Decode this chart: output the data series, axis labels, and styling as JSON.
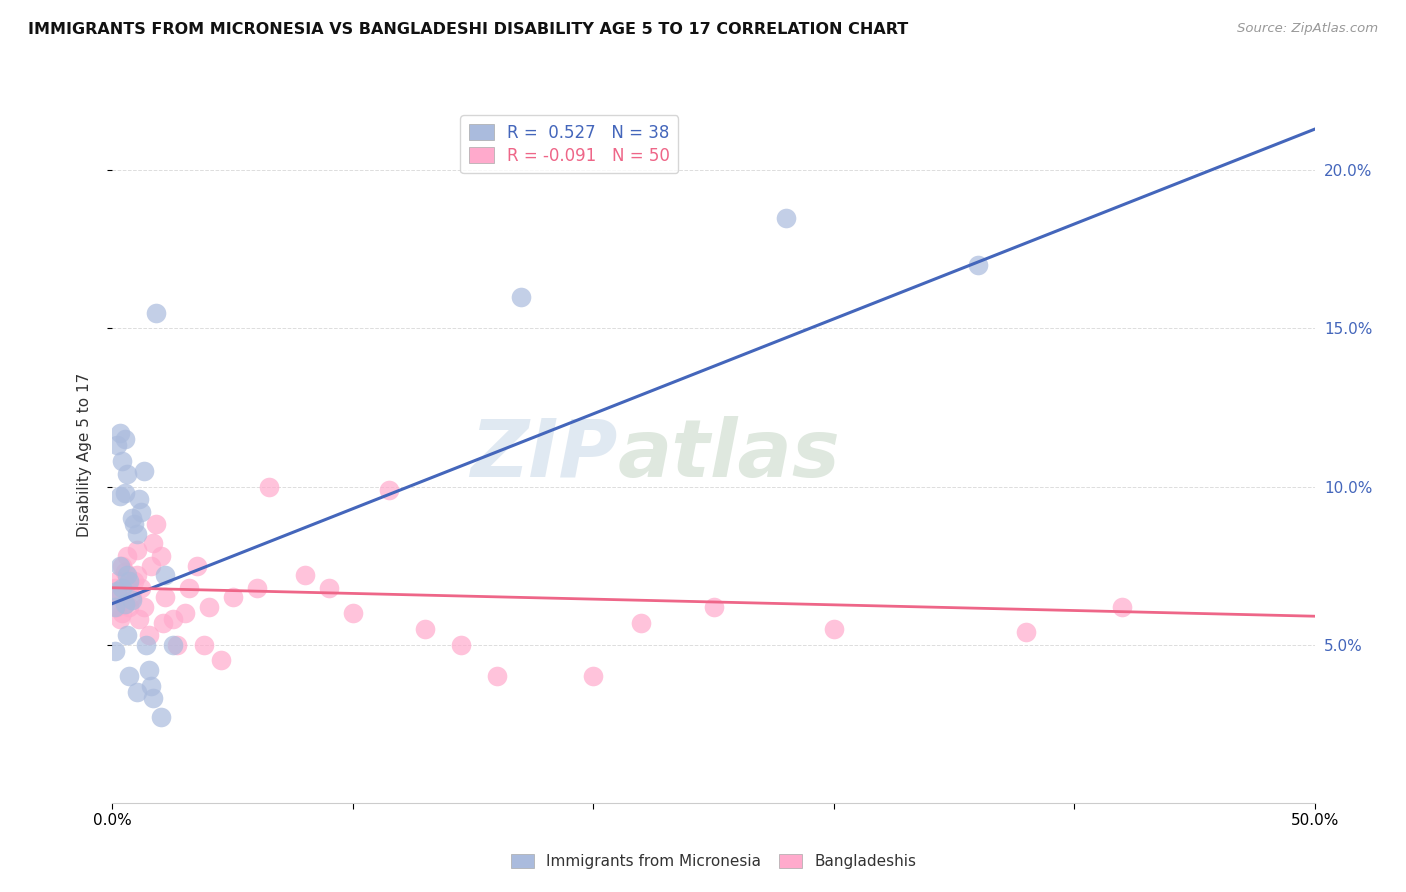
{
  "title": "IMMIGRANTS FROM MICRONESIA VS BANGLADESHI DISABILITY AGE 5 TO 17 CORRELATION CHART",
  "source": "Source: ZipAtlas.com",
  "ylabel": "Disability Age 5 to 17",
  "xlim": [
    0.0,
    0.5
  ],
  "ylim": [
    0.0,
    0.22
  ],
  "background_color": "#ffffff",
  "grid_color": "#dddddd",
  "watermark_zip": "ZIP",
  "watermark_atlas": "atlas",
  "blue_scatter_color": "#aabbdd",
  "pink_scatter_color": "#ffaacc",
  "blue_line_color": "#4466bb",
  "pink_line_color": "#ee6688",
  "blue_line_intercept": 0.063,
  "blue_line_slope": 0.3,
  "pink_line_intercept": 0.068,
  "pink_line_slope": -0.018,
  "micronesia_x": [
    0.001,
    0.001,
    0.002,
    0.002,
    0.003,
    0.003,
    0.003,
    0.004,
    0.004,
    0.005,
    0.005,
    0.005,
    0.006,
    0.006,
    0.006,
    0.007,
    0.007,
    0.008,
    0.008,
    0.009,
    0.01,
    0.01,
    0.011,
    0.012,
    0.013,
    0.014,
    0.015,
    0.016,
    0.017,
    0.018,
    0.02,
    0.022,
    0.025,
    0.17,
    0.28,
    0.36
  ],
  "micronesia_y": [
    0.062,
    0.048,
    0.113,
    0.067,
    0.117,
    0.097,
    0.075,
    0.108,
    0.068,
    0.115,
    0.098,
    0.063,
    0.104,
    0.072,
    0.053,
    0.07,
    0.04,
    0.09,
    0.064,
    0.088,
    0.085,
    0.035,
    0.096,
    0.092,
    0.105,
    0.05,
    0.042,
    0.037,
    0.033,
    0.155,
    0.027,
    0.072,
    0.05,
    0.16,
    0.185,
    0.17
  ],
  "bangladeshi_x": [
    0.001,
    0.002,
    0.002,
    0.003,
    0.003,
    0.004,
    0.004,
    0.005,
    0.005,
    0.006,
    0.007,
    0.007,
    0.008,
    0.009,
    0.01,
    0.01,
    0.011,
    0.012,
    0.013,
    0.015,
    0.016,
    0.017,
    0.018,
    0.02,
    0.021,
    0.022,
    0.025,
    0.027,
    0.03,
    0.032,
    0.035,
    0.038,
    0.04,
    0.045,
    0.05,
    0.06,
    0.065,
    0.08,
    0.09,
    0.1,
    0.115,
    0.13,
    0.145,
    0.16,
    0.2,
    0.22,
    0.25,
    0.3,
    0.38,
    0.42
  ],
  "bangladeshi_y": [
    0.068,
    0.062,
    0.07,
    0.065,
    0.058,
    0.06,
    0.075,
    0.073,
    0.063,
    0.078,
    0.062,
    0.068,
    0.065,
    0.07,
    0.072,
    0.08,
    0.058,
    0.068,
    0.062,
    0.053,
    0.075,
    0.082,
    0.088,
    0.078,
    0.057,
    0.065,
    0.058,
    0.05,
    0.06,
    0.068,
    0.075,
    0.05,
    0.062,
    0.045,
    0.065,
    0.068,
    0.1,
    0.072,
    0.068,
    0.06,
    0.099,
    0.055,
    0.05,
    0.04,
    0.04,
    0.057,
    0.062,
    0.055,
    0.054,
    0.062
  ]
}
